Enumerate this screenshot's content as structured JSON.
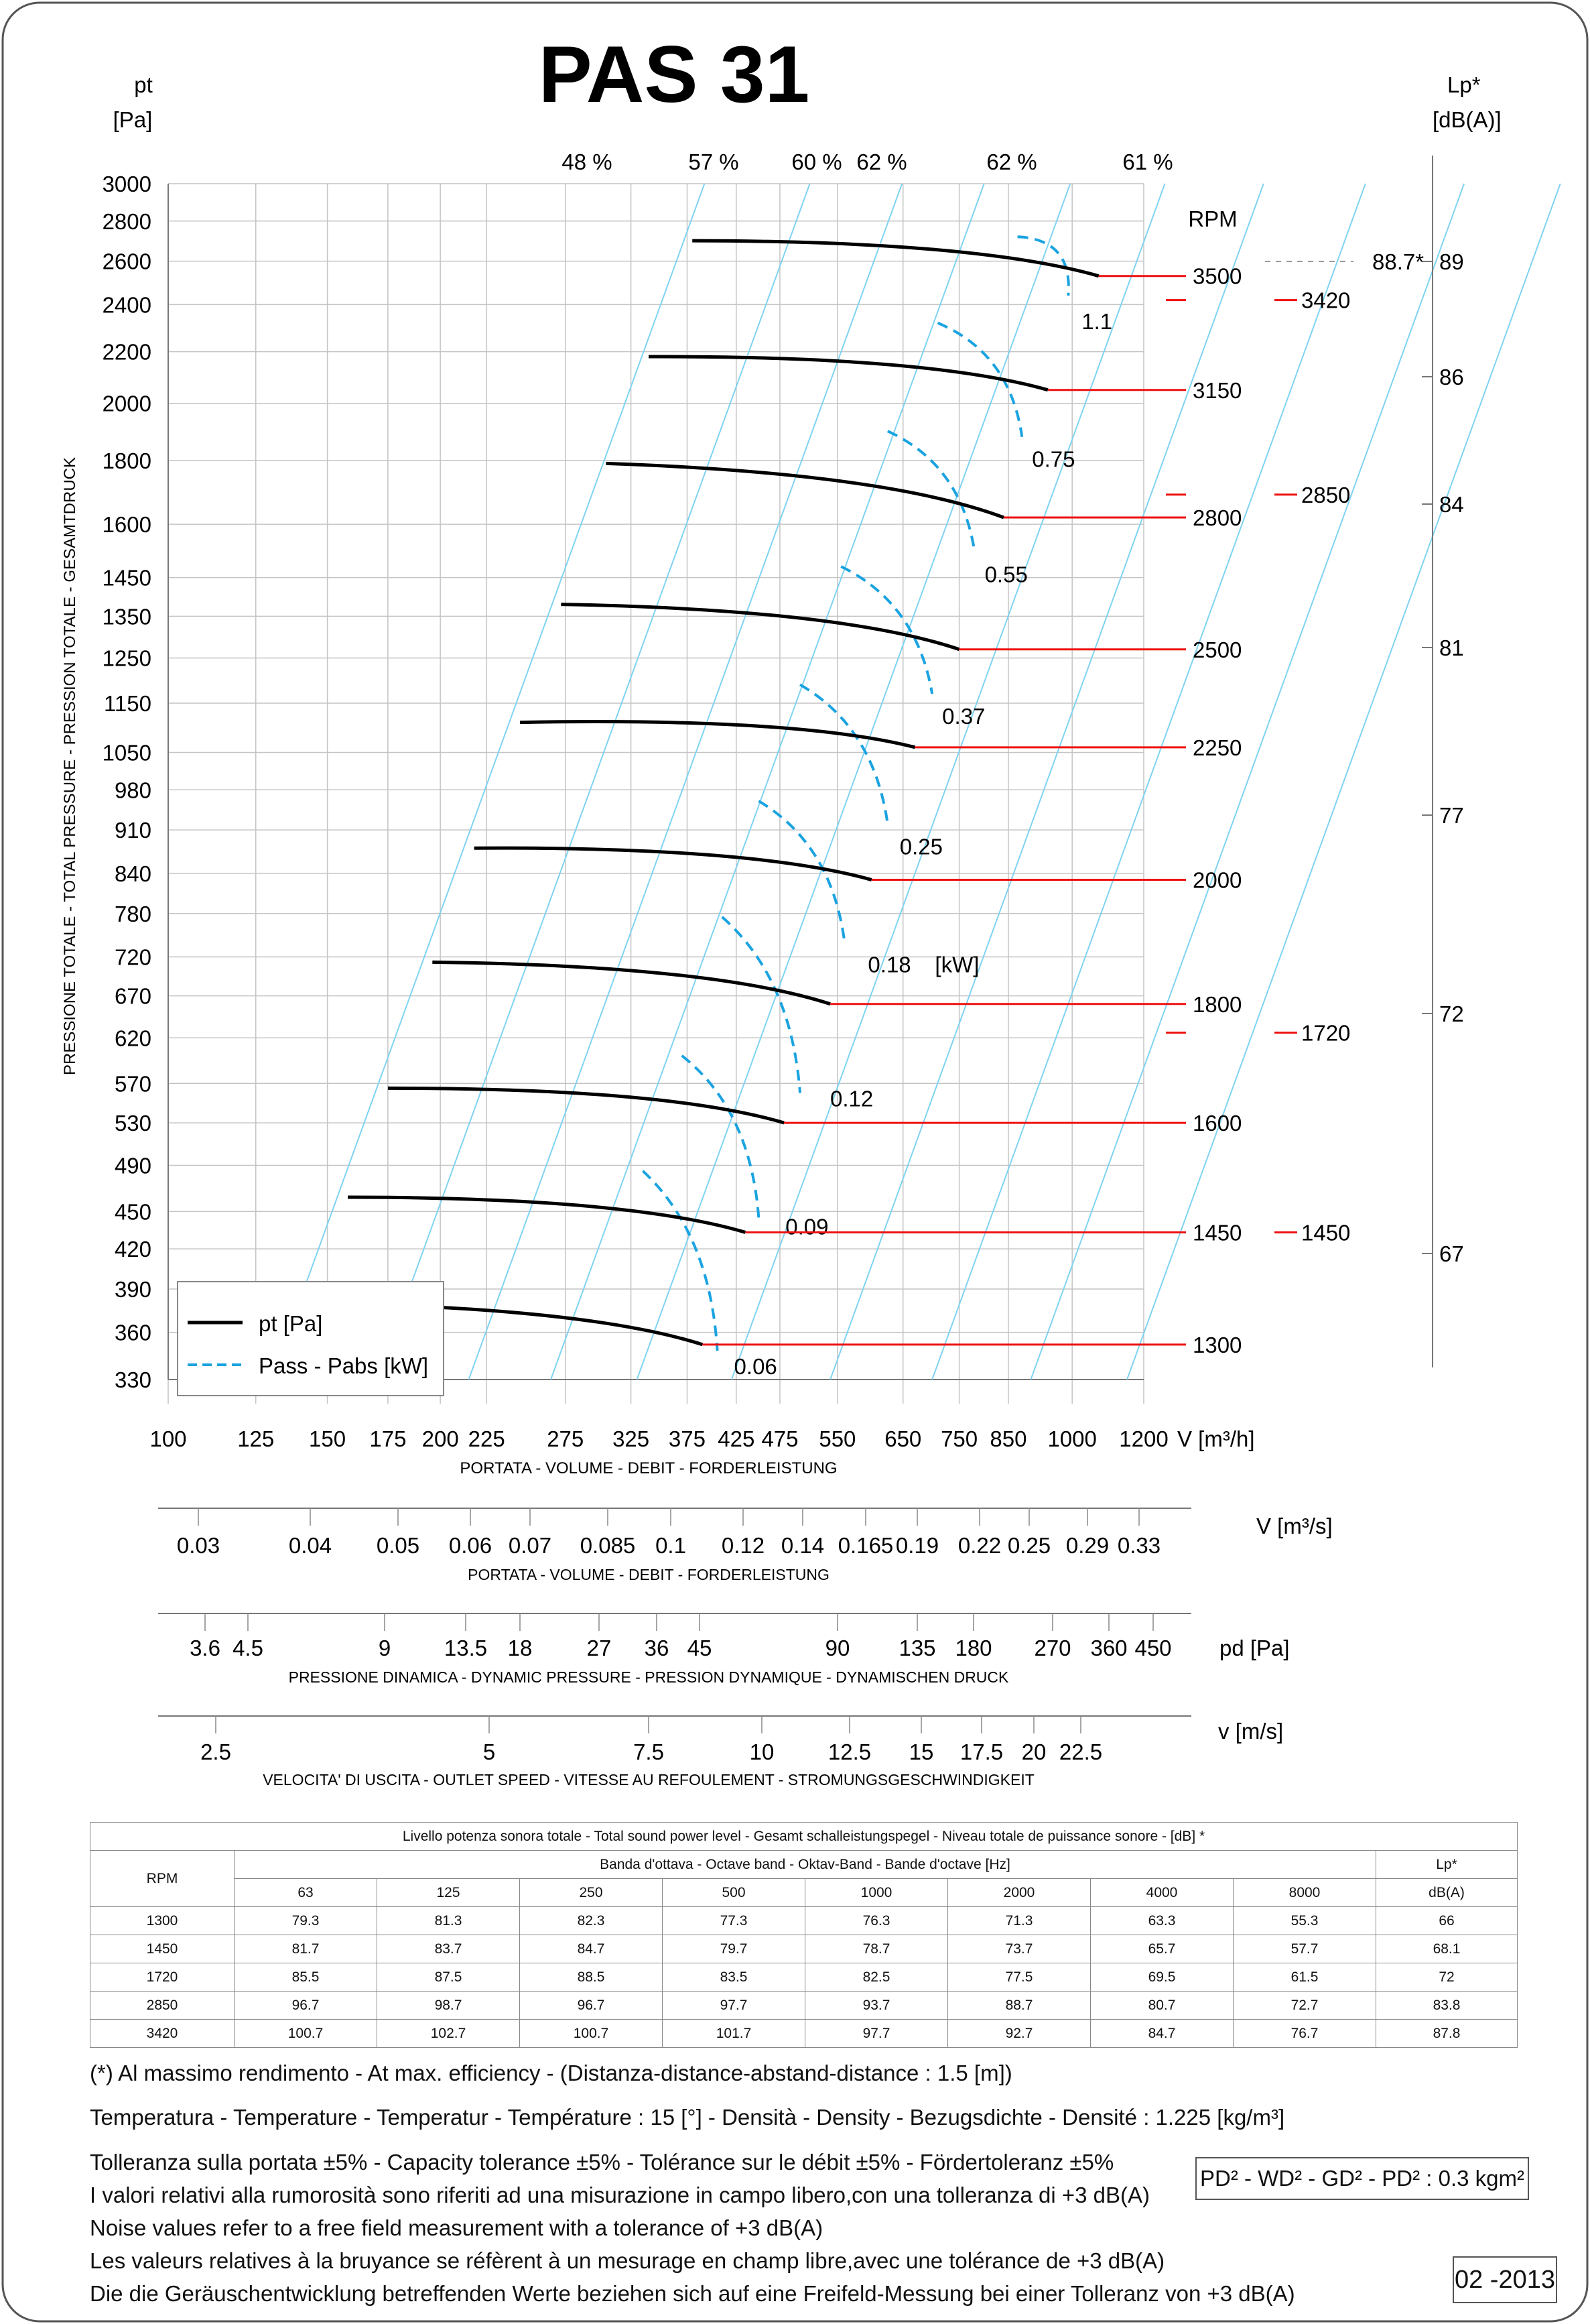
{
  "title": "PAS 31",
  "chart_data": {
    "type": "line",
    "y_label_top": "pt",
    "y_unit": "[Pa]",
    "y_axis_title": "PRESSIONE TOTALE - TOTAL PRESSURE - PRESSION TOTALE - GESAMTDRUCK",
    "y_scale": "log",
    "ylim": [
      330,
      3000
    ],
    "y_ticks": [
      3000,
      2800,
      2600,
      2400,
      2200,
      2000,
      1800,
      1600,
      1450,
      1350,
      1250,
      1150,
      1050,
      980,
      910,
      840,
      780,
      720,
      670,
      620,
      570,
      530,
      490,
      450,
      420,
      390,
      360,
      330
    ],
    "x_scale": "log",
    "xlim": [
      100,
      1200
    ],
    "x_ticks": [
      100,
      125,
      150,
      175,
      200,
      225,
      275,
      325,
      375,
      425,
      475,
      550,
      650,
      750,
      850,
      1000,
      1200
    ],
    "x_unit": "V [m³/h]",
    "x_axis_title": "PORTATA - VOLUME - DEBIT - FORDERLEISTUNG",
    "legend": [
      {
        "label": "pt [Pa]",
        "color": "#000000",
        "style": "solid"
      },
      {
        "label": "Pass - Pabs [kW]",
        "color": "#1aa3e0",
        "style": "dashed"
      }
    ],
    "rpm_label": "RPM",
    "rpm_series": [
      {
        "rpm": "3500",
        "x": [
          380,
          1070
        ],
        "y": [
          2700,
          2530
        ]
      },
      {
        "rpm": "3150",
        "x": [
          340,
          940
        ],
        "y": [
          2180,
          2050
        ]
      },
      {
        "rpm": "2800",
        "x": [
          305,
          840
        ],
        "y": [
          1790,
          1620
        ]
      },
      {
        "rpm": "2500",
        "x": [
          272,
          750
        ],
        "y": [
          1380,
          1270
        ]
      },
      {
        "rpm": "2250",
        "x": [
          245,
          670
        ],
        "y": [
          1110,
          1060
        ]
      },
      {
        "rpm": "2000",
        "x": [
          218,
          600
        ],
        "y": [
          880,
          830
        ]
      },
      {
        "rpm": "1800",
        "x": [
          196,
          540
        ],
        "y": [
          713,
          660
        ]
      },
      {
        "rpm": "1600",
        "x": [
          175,
          480
        ],
        "y": [
          565,
          530
        ]
      },
      {
        "rpm": "1450",
        "x": [
          158,
          435
        ],
        "y": [
          462,
          433
        ]
      },
      {
        "rpm": "1300",
        "x": [
          140,
          390
        ],
        "y": [
          380,
          352
        ]
      }
    ],
    "rpm_labels_right": [
      "3500",
      "3150",
      "2800",
      "2500",
      "2250",
      "2000",
      "1800",
      "1600",
      "1450",
      "1300"
    ],
    "rpm_labels_sound": [
      "3420",
      "2850",
      "1720",
      "1450"
    ],
    "efficiency_labels": [
      "48 %",
      "57 %",
      "60 %",
      "62 %",
      "62 %",
      "61 %"
    ],
    "power_curves": [
      {
        "kw": "1.1",
        "x": [
          870,
          990
        ],
        "y": [
          2720,
          2440
        ]
      },
      {
        "kw": "0.75",
        "x": [
          710,
          880
        ],
        "y": [
          2320,
          1880
        ]
      },
      {
        "kw": "0.55",
        "x": [
          625,
          780
        ],
        "y": [
          1900,
          1520
        ]
      },
      {
        "kw": "0.37",
        "x": [
          555,
          700
        ],
        "y": [
          1480,
          1170
        ]
      },
      {
        "kw": "0.25",
        "x": [
          500,
          625
        ],
        "y": [
          1190,
          920
        ]
      },
      {
        "kw": "0.18",
        "x": [
          450,
          560
        ],
        "y": [
          960,
          740
        ]
      },
      {
        "kw": "0.12",
        "x": [
          410,
          500
        ],
        "y": [
          775,
          560
        ]
      },
      {
        "kw": "0.09",
        "x": [
          370,
          450
        ],
        "y": [
          600,
          445
        ]
      },
      {
        "kw": "0.06",
        "x": [
          335,
          405
        ],
        "y": [
          485,
          348
        ]
      }
    ],
    "power_unit": "[kW]",
    "lp_label": "Lp*",
    "lp_unit": "[dB(A)]",
    "lp_ticks": [
      "89",
      "86",
      "84",
      "81",
      "77",
      "72",
      "67"
    ],
    "lp_max": "88.7*",
    "scales": [
      {
        "unit": "V  [m³/s]",
        "title": "PORTATA - VOLUME - DEBIT - FORDERLEISTUNG",
        "ticks": [
          "0.03",
          "0.04",
          "0.05",
          "0.06",
          "0.07",
          "0.085",
          "0.1",
          "0.12",
          "0.14",
          "0.165",
          "0.19",
          "0.22",
          "0.25",
          "0.29",
          "0.33"
        ]
      },
      {
        "unit": "pd  [Pa]",
        "title": "PRESSIONE DINAMICA - DYNAMIC PRESSURE - PRESSION DYNAMIQUE - DYNAMISCHEN DRUCK",
        "ticks": [
          "3.6",
          "4.5",
          "9",
          "13.5",
          "18",
          "27",
          "36",
          "45",
          "90",
          "135",
          "180",
          "270",
          "360",
          "450"
        ]
      },
      {
        "unit": "v  [m/s]",
        "title": "VELOCITA' DI USCITA - OUTLET SPEED - VITESSE AU REFOULEMENT - STROMUNGSGESCHWINDIGKEIT",
        "ticks": [
          "2.5",
          "5",
          "7.5",
          "10",
          "12.5",
          "15",
          "17.5",
          "20",
          "22.5"
        ]
      }
    ]
  },
  "sound_table": {
    "title": "Livello potenza sonora totale - Total sound power level - Gesamt schalleistungspegel - Niveau totale de puissance sonore - [dB]   *",
    "band_header": "Banda d'ottava - Octave band - Oktav-Band - Bande d'octave [Hz]",
    "rpm_header": "RPM",
    "lp_header": "Lp*",
    "lp_unit": "dB(A)",
    "bands": [
      "63",
      "125",
      "250",
      "500",
      "1000",
      "2000",
      "4000",
      "8000"
    ],
    "rows": [
      {
        "rpm": "1300",
        "values": [
          "79.3",
          "81.3",
          "82.3",
          "77.3",
          "76.3",
          "71.3",
          "63.3",
          "55.3"
        ],
        "lp": "66"
      },
      {
        "rpm": "1450",
        "values": [
          "81.7",
          "83.7",
          "84.7",
          "79.7",
          "78.7",
          "73.7",
          "65.7",
          "57.7"
        ],
        "lp": "68.1"
      },
      {
        "rpm": "1720",
        "values": [
          "85.5",
          "87.5",
          "88.5",
          "83.5",
          "82.5",
          "77.5",
          "69.5",
          "61.5"
        ],
        "lp": "72"
      },
      {
        "rpm": "2850",
        "values": [
          "96.7",
          "98.7",
          "96.7",
          "97.7",
          "93.7",
          "88.7",
          "80.7",
          "72.7"
        ],
        "lp": "83.8"
      },
      {
        "rpm": "3420",
        "values": [
          "100.7",
          "102.7",
          "100.7",
          "101.7",
          "97.7",
          "92.7",
          "84.7",
          "76.7"
        ],
        "lp": "87.8"
      }
    ]
  },
  "notes": {
    "efficiency_note": "(*) Al massimo rendimento - At max. efficiency - (Distanza-distance-abstand-distance : 1.5 [m])",
    "conditions": "Temperatura - Temperature - Temperatur - Température : 15 [°]  -  Densità - Density - Bezugsdichte - Densité : 1.225 [kg/m³]",
    "tolerance": "Tolleranza sulla portata  ±5% - Capacity tolerance ±5% - Tolérance sur le débit ±5% - Fördertoleranz ±5%",
    "noise_it": "I valori relativi alla rumorosità sono riferiti ad una misurazione in campo libero,con una tolleranza di +3 dB(A)",
    "noise_en": "Noise values refer to a free field measurement with a tolerance of +3 dB(A)",
    "noise_fr": "Les valeurs relatives à la bruyance se réfèrent à un mesurage en champ libre,avec une tolérance de +3 dB(A)",
    "noise_de": "Die die Geräuschentwicklung betreffenden Werte beziehen sich auf eine Freifeld-Messung bei einer Tolleranz von +3 dB(A)"
  },
  "inertia": "PD² -  WD² - GD² -  PD²  :  0.3 kgm²",
  "date_code": "02 -2013"
}
